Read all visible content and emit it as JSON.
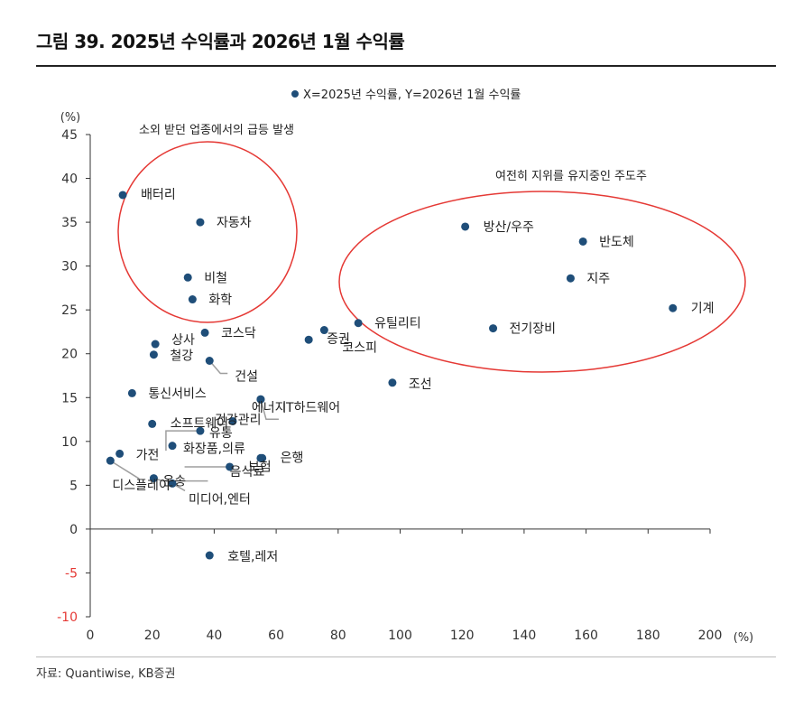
{
  "page": {
    "title": "그림 39. 2025년 수익률과 2026년 1월 수익률",
    "source": "자료: Quantiwise, KB증권"
  },
  "colors": {
    "point": "#1f4e79",
    "ellipse": "#e53935",
    "axis": "#333333",
    "negative_tick": "#e53935",
    "leader": "#9e9e9e"
  },
  "chart_data": {
    "type": "scatter",
    "legend": "X=2025년 수익률, Y=2026년 1월 수익률",
    "xunit": "(%)",
    "yunit": "(%)",
    "xlim": [
      0,
      200
    ],
    "ylim": [
      -10,
      45
    ],
    "xticks": [
      0,
      20,
      40,
      60,
      80,
      100,
      120,
      140,
      160,
      180,
      200
    ],
    "yticks": [
      -10,
      -5,
      0,
      5,
      10,
      15,
      20,
      25,
      30,
      35,
      40,
      45
    ],
    "points": [
      {
        "name": "배터리",
        "x": 10.5,
        "y": 38.1
      },
      {
        "name": "자동차",
        "x": 35.5,
        "y": 35.0
      },
      {
        "name": "비철",
        "x": 31.5,
        "y": 28.7
      },
      {
        "name": "화학",
        "x": 33.0,
        "y": 26.2
      },
      {
        "name": "코스닥",
        "x": 37.0,
        "y": 22.4
      },
      {
        "name": "상사",
        "x": 21.0,
        "y": 21.1
      },
      {
        "name": "철강",
        "x": 20.5,
        "y": 19.9
      },
      {
        "name": "건설",
        "x": 38.5,
        "y": 19.2
      },
      {
        "name": "통신서비스",
        "x": 13.5,
        "y": 15.5
      },
      {
        "name": "소프트웨어",
        "x": 20.0,
        "y": 12.0
      },
      {
        "name": "유통",
        "x": 35.5,
        "y": 11.2
      },
      {
        "name": "건강관리",
        "x": 46.0,
        "y": 12.3
      },
      {
        "name": "에너지",
        "x": 55.0,
        "y": 14.8
      },
      {
        "name": "IT하드웨어",
        "x": 55.0,
        "y": 14.8
      },
      {
        "name": "가전",
        "x": 9.5,
        "y": 8.6
      },
      {
        "name": "화장품,의류",
        "x": 26.5,
        "y": 9.5
      },
      {
        "name": "디스플레이",
        "x": 6.5,
        "y": 7.8
      },
      {
        "name": "운송",
        "x": 20.5,
        "y": 5.8
      },
      {
        "name": "미디어,엔터",
        "x": 26.5,
        "y": 5.2
      },
      {
        "name": "음식료",
        "x": 45.0,
        "y": 7.1
      },
      {
        "name": "보험",
        "x": 55.0,
        "y": 8.1
      },
      {
        "name": "은행",
        "x": 55.5,
        "y": 8.1
      },
      {
        "name": "증권",
        "x": 70.5,
        "y": 21.6
      },
      {
        "name": "코스피",
        "x": 75.5,
        "y": 22.7
      },
      {
        "name": "유틸리티",
        "x": 86.5,
        "y": 23.5
      },
      {
        "name": "조선",
        "x": 97.5,
        "y": 16.7
      },
      {
        "name": "방산/우주",
        "x": 121.0,
        "y": 34.5
      },
      {
        "name": "반도체",
        "x": 159.0,
        "y": 32.8
      },
      {
        "name": "지주",
        "x": 155.0,
        "y": 28.6
      },
      {
        "name": "전기장비",
        "x": 130.0,
        "y": 22.9
      },
      {
        "name": "기계",
        "x": 188.0,
        "y": 25.2
      },
      {
        "name": "호텔,레저",
        "x": 38.5,
        "y": -3.0
      }
    ],
    "annotations": [
      {
        "text": "소외 받던 업종에서의 급등 발생"
      },
      {
        "text": "여전히 지위를 유지중인 주도주"
      }
    ]
  }
}
